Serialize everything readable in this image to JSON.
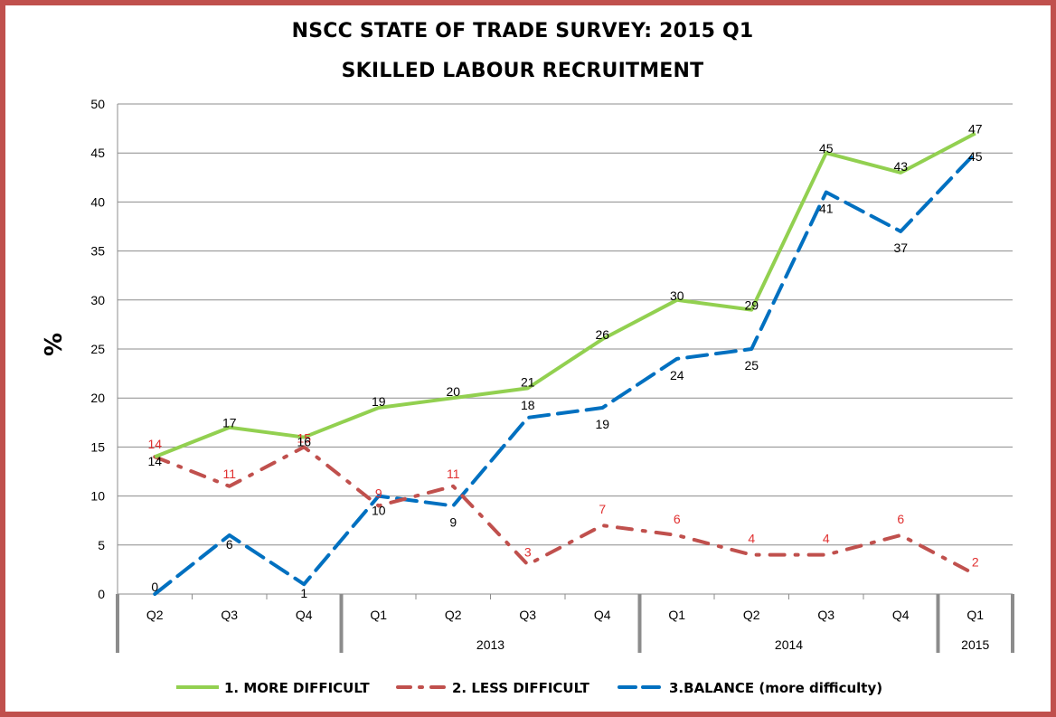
{
  "chart_data": {
    "type": "line",
    "title": "NSCC STATE OF TRADE SURVEY: 2015 Q1",
    "subtitle": "SKILLED LABOUR RECRUITMENT",
    "ylabel": "%",
    "ylim": [
      0,
      50
    ],
    "yticks": [
      0,
      5,
      10,
      15,
      20,
      25,
      30,
      35,
      40,
      45,
      50
    ],
    "grid": true,
    "legend_position": "bottom",
    "categories": [
      "Q2",
      "Q3",
      "Q4",
      "Q1",
      "Q2",
      "Q3",
      "Q4",
      "Q1",
      "Q2",
      "Q3",
      "Q4",
      "Q1"
    ],
    "year_groups": [
      {
        "label": "",
        "span": 3
      },
      {
        "label": "2013",
        "span": 4
      },
      {
        "label": "2014",
        "span": 4
      },
      {
        "label": "2015",
        "span": 1
      }
    ],
    "series": [
      {
        "name": "1. MORE DIFFICULT",
        "color": "#92d050",
        "style": "solid",
        "label_color": "#000000",
        "values": [
          14,
          17,
          16,
          19,
          20,
          21,
          26,
          30,
          29,
          45,
          43,
          47
        ]
      },
      {
        "name": "2. LESS DIFFICULT",
        "color": "#c0504d",
        "style": "dash-dot",
        "label_color": "#e03030",
        "values": [
          14,
          11,
          15,
          9,
          11,
          3,
          7,
          6,
          4,
          4,
          6,
          2
        ]
      },
      {
        "name": "3.BALANCE (more difficulty)",
        "color": "#0070c0",
        "style": "dashed",
        "label_color": "#000000",
        "values": [
          0,
          6,
          1,
          10,
          9,
          18,
          19,
          24,
          25,
          41,
          37,
          45
        ]
      }
    ]
  }
}
